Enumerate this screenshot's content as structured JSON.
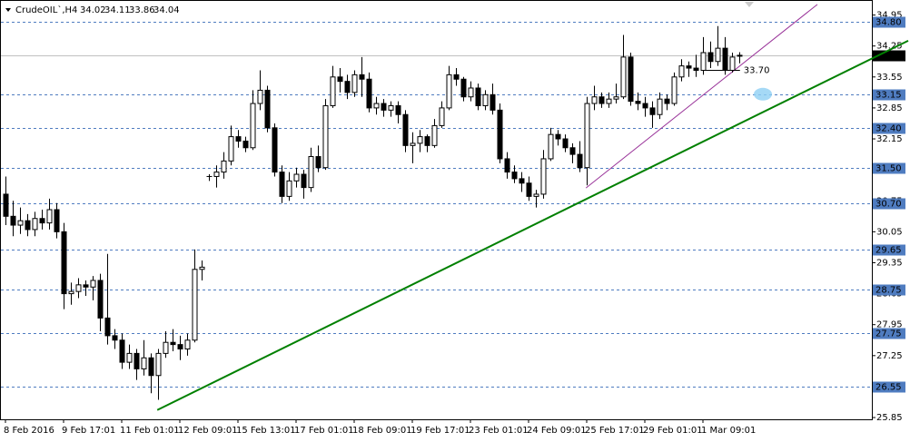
{
  "chart_data": {
    "type": "candlestick",
    "title": "CrudeOIL`,H4",
    "categories": [
      "8 Feb 2016",
      null,
      null,
      null,
      null,
      null,
      null,
      null,
      "9 Feb 17:01",
      null,
      null,
      null,
      null,
      null,
      null,
      null,
      "11 Feb 01:01",
      null,
      null,
      null,
      null,
      null,
      null,
      null,
      "12 Feb 09:01",
      null,
      null,
      null,
      null,
      null,
      null,
      null,
      "15 Feb 13:01",
      null,
      null,
      null,
      null,
      null,
      null,
      null,
      "17 Feb 01:01",
      null,
      null,
      null,
      null,
      null,
      null,
      null,
      "18 Feb 09:01",
      null,
      null,
      null,
      null,
      null,
      null,
      null,
      "19 Feb 17:01",
      null,
      null,
      null,
      null,
      null,
      null,
      null,
      "23 Feb 01:01",
      null,
      null,
      null,
      null,
      null,
      null,
      null,
      "24 Feb 09:01",
      null,
      null,
      null,
      null,
      null,
      null,
      null,
      "25 Feb 17:01",
      null,
      null,
      null,
      null,
      null,
      null,
      null,
      "29 Feb 01:01",
      null,
      null,
      null,
      null,
      null,
      null,
      null,
      "1 Mar 09:01",
      null,
      null,
      null,
      null,
      null
    ],
    "open": [
      30.9,
      30.4,
      30.2,
      30.3,
      30.1,
      30.35,
      30.25,
      30.55,
      30.05,
      28.65,
      28.7,
      28.85,
      28.8,
      28.95,
      28.1,
      27.7,
      27.6,
      27.1,
      27.3,
      26.95,
      27.2,
      26.8,
      27.3,
      27.55,
      27.5,
      27.4,
      27.6,
      29.2,
      31.3,
      31.3,
      31.4,
      31.65,
      32.2,
      32.1,
      31.95,
      32.95,
      33.25,
      32.4,
      31.4,
      30.85,
      31.2,
      31.35,
      31.05,
      31.75,
      31.5,
      32.9,
      33.55,
      33.45,
      33.2,
      33.6,
      33.5,
      32.85,
      32.95,
      32.8,
      32.9,
      32.7,
      32.0,
      32.05,
      32.2,
      32.0,
      32.45,
      32.85,
      33.6,
      33.5,
      33.1,
      33.3,
      32.9,
      33.15,
      32.8,
      31.7,
      31.4,
      31.25,
      31.15,
      30.85,
      30.9,
      31.7,
      32.25,
      32.15,
      31.95,
      31.8,
      31.5,
      32.95,
      33.1,
      32.95,
      33.05,
      33.1,
      34.0,
      33.0,
      32.95,
      32.85,
      32.7,
      33.05,
      32.95,
      33.55,
      33.8,
      33.75,
      33.7,
      34.1,
      33.9,
      34.2,
      33.7,
      34.02
    ],
    "high": [
      31.3,
      30.75,
      30.6,
      30.45,
      30.5,
      30.55,
      30.8,
      30.7,
      30.25,
      28.9,
      29.0,
      28.95,
      29.05,
      29.1,
      29.55,
      27.85,
      27.75,
      27.5,
      27.4,
      27.6,
      27.3,
      27.4,
      27.8,
      27.85,
      27.7,
      27.75,
      29.65,
      29.4,
      31.35,
      31.55,
      31.85,
      32.45,
      32.35,
      32.2,
      33.25,
      33.7,
      33.35,
      32.5,
      31.55,
      31.4,
      31.5,
      31.45,
      31.95,
      32.0,
      33.05,
      33.8,
      33.75,
      33.6,
      33.7,
      34.0,
      33.65,
      33.1,
      33.05,
      33.0,
      33.0,
      32.8,
      32.3,
      32.35,
      32.25,
      32.6,
      33.0,
      33.8,
      33.75,
      33.55,
      33.45,
      33.4,
      33.25,
      33.4,
      32.95,
      31.85,
      31.55,
      31.4,
      31.3,
      31.0,
      31.9,
      32.4,
      32.35,
      32.25,
      32.05,
      32.1,
      33.1,
      33.35,
      33.2,
      33.2,
      33.4,
      34.5,
      34.1,
      33.2,
      33.1,
      33.0,
      33.2,
      33.15,
      33.65,
      33.95,
      33.9,
      34.05,
      34.45,
      34.35,
      34.7,
      34.45,
      34.1,
      34.11
    ],
    "low": [
      30.2,
      29.95,
      30.0,
      29.95,
      29.95,
      30.1,
      30.1,
      29.9,
      28.3,
      28.4,
      28.55,
      28.6,
      28.5,
      27.8,
      27.5,
      27.4,
      26.95,
      26.95,
      26.7,
      26.8,
      26.4,
      26.25,
      27.2,
      27.35,
      27.15,
      27.25,
      27.55,
      28.95,
      31.2,
      31.05,
      31.25,
      31.55,
      31.95,
      31.85,
      31.9,
      32.8,
      32.3,
      31.3,
      30.7,
      30.75,
      31.05,
      30.8,
      30.95,
      31.4,
      31.45,
      32.85,
      33.2,
      33.05,
      33.1,
      33.1,
      32.75,
      32.7,
      32.65,
      32.65,
      32.5,
      31.85,
      31.6,
      31.85,
      31.85,
      31.95,
      32.4,
      32.8,
      33.35,
      33.0,
      33.0,
      32.8,
      32.8,
      32.7,
      31.6,
      31.25,
      31.15,
      30.95,
      30.75,
      30.6,
      30.8,
      31.65,
      32.0,
      31.85,
      31.6,
      31.4,
      31.1,
      32.8,
      32.85,
      32.85,
      32.95,
      33.05,
      32.9,
      32.8,
      32.65,
      32.4,
      32.6,
      32.8,
      32.9,
      33.45,
      33.55,
      33.55,
      33.6,
      33.75,
      33.8,
      33.6,
      33.65,
      33.86
    ],
    "close": [
      30.4,
      30.2,
      30.3,
      30.1,
      30.35,
      30.25,
      30.55,
      30.05,
      28.65,
      28.7,
      28.85,
      28.8,
      28.95,
      28.1,
      27.7,
      27.6,
      27.1,
      27.3,
      26.95,
      27.2,
      26.8,
      27.3,
      27.55,
      27.5,
      27.4,
      27.6,
      29.2,
      29.25,
      31.3,
      31.4,
      31.65,
      32.2,
      32.1,
      31.95,
      32.95,
      33.25,
      32.4,
      31.4,
      30.85,
      31.2,
      31.35,
      31.05,
      31.75,
      31.5,
      32.9,
      33.55,
      33.45,
      33.2,
      33.6,
      33.5,
      32.85,
      32.95,
      32.8,
      32.9,
      32.7,
      32.0,
      32.05,
      32.2,
      32.0,
      32.45,
      32.85,
      33.6,
      33.5,
      33.1,
      33.3,
      32.9,
      33.15,
      32.8,
      31.7,
      31.4,
      31.25,
      31.15,
      30.85,
      30.9,
      31.7,
      32.25,
      32.15,
      31.95,
      31.8,
      31.5,
      32.95,
      33.1,
      32.95,
      33.05,
      33.1,
      34.0,
      33.0,
      32.95,
      32.85,
      32.7,
      33.05,
      32.95,
      33.55,
      33.8,
      33.75,
      33.7,
      34.1,
      33.9,
      34.2,
      33.7,
      34.0,
      34.04
    ],
    "ylim": [
      25.81,
      35.29
    ],
    "yticks": [
      34.95,
      34.25,
      33.55,
      32.85,
      32.15,
      31.45,
      30.75,
      30.05,
      29.35,
      28.65,
      27.95,
      27.25,
      26.55,
      25.85
    ],
    "levels": [
      {
        "value": 34.8,
        "label": "34.80"
      },
      33.15,
      {
        "value": 32.4,
        "label": "32.40"
      },
      {
        "value": 31.5,
        "label": "31.50"
      },
      {
        "value": 30.7,
        "label": "30.70"
      },
      29.65,
      28.75,
      27.75,
      26.55
    ],
    "level_color": "#4f7cc0",
    "last_price": 34.04,
    "trendlines": [
      {
        "color": "#008000",
        "x": [
          20.9,
          124.25
        ],
        "values": [
          26.02,
          34.37
        ]
      },
      {
        "color": "#993399",
        "x": [
          79.9,
          111.75
        ],
        "values": [
          31.04,
          35.19
        ]
      }
    ],
    "annotation": {
      "value": 33.7,
      "label": "33.70",
      "x": [
        96.1,
        101.1
      ]
    },
    "highlight": {
      "x": 104.25,
      "value": 33.16,
      "color": "#8fd0f4"
    }
  }
}
